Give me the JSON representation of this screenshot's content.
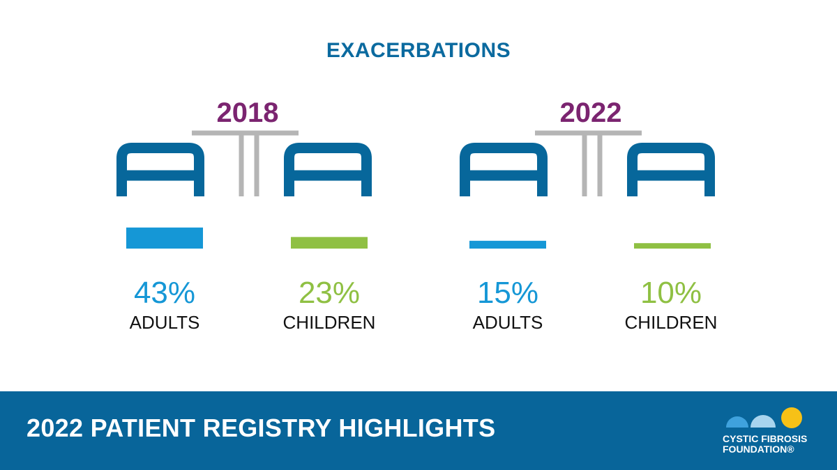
{
  "colors": {
    "title_blue": "#0b6a9f",
    "year_purple": "#7b2470",
    "adults_blue": "#1597d6",
    "children_green": "#8fc043",
    "icon_blue": "#07679b",
    "icon_gray": "#b5b5b5",
    "footer_blue": "#08659a",
    "logo_yellow": "#f6c117",
    "logo_lightblue": "#a8d4ee",
    "logo_blue": "#3fa2dd"
  },
  "page_title": "EXACERBATIONS",
  "chart_data": {
    "type": "bar",
    "title": "EXACERBATIONS",
    "panels": [
      {
        "year": "2018",
        "categories": [
          "ADULTS",
          "CHILDREN"
        ],
        "values": [
          43,
          23
        ],
        "labels": [
          "43%",
          "23%"
        ]
      },
      {
        "year": "2022",
        "categories": [
          "ADULTS",
          "CHILDREN"
        ],
        "values": [
          15,
          10
        ],
        "labels": [
          "15%",
          "10%"
        ]
      }
    ],
    "series_colors": [
      "#1597d6",
      "#8fc043"
    ],
    "unit": "%"
  },
  "footer": {
    "title": "2022 PATIENT REGISTRY HIGHLIGHTS",
    "logo_line1": "CYSTIC FIBROSIS",
    "logo_line2": "FOUNDATION®"
  }
}
